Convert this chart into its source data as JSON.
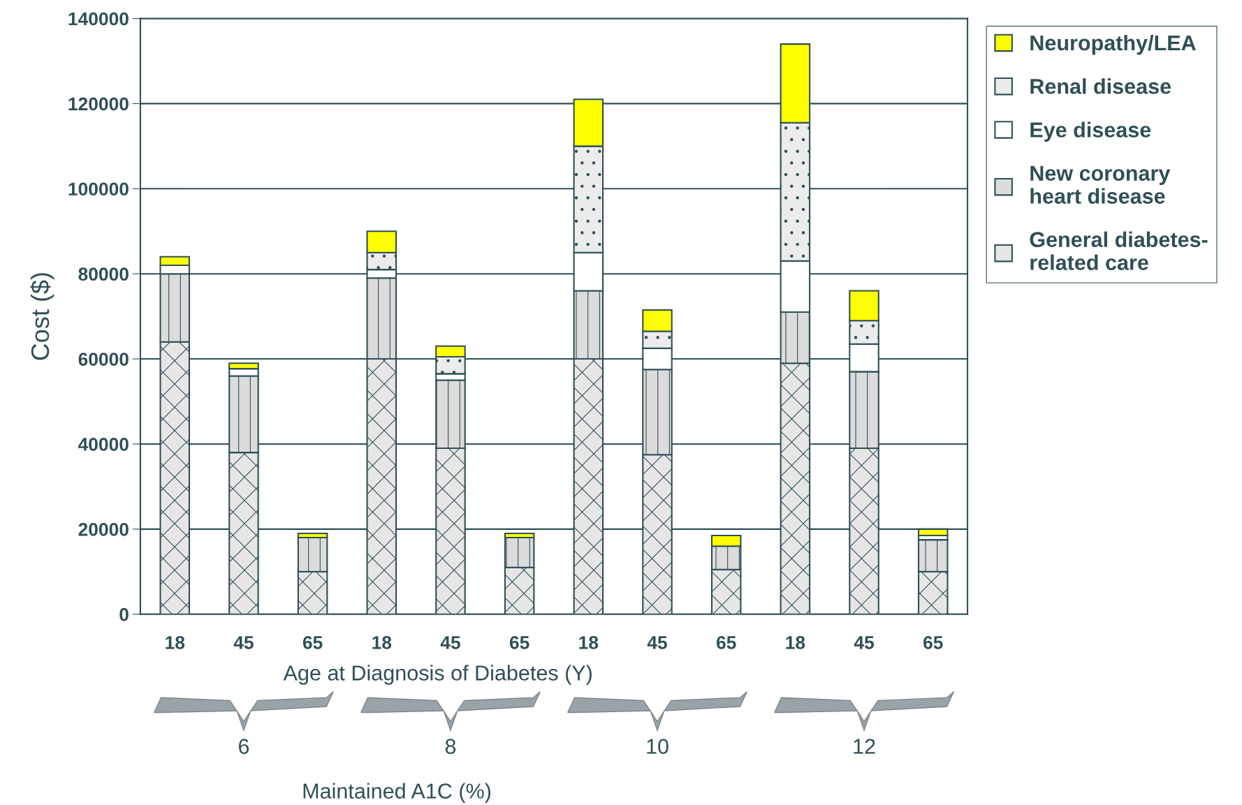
{
  "chart_data": {
    "type": "bar",
    "stacked": true,
    "ylabel": "Cost ($)",
    "xlabel": "Age at Diagnosis of Diabetes (Y)",
    "categories": [
      "18",
      "45",
      "65",
      "18",
      "45",
      "65",
      "18",
      "45",
      "65",
      "18",
      "45",
      "65"
    ],
    "series": [
      {
        "name": "General diabetes-related care",
        "color": "#e6e6e6",
        "values": [
          64000,
          38000,
          10000,
          60000,
          39000,
          11000,
          60000,
          37500,
          10500,
          59000,
          39000,
          10000
        ]
      },
      {
        "name": "New coronary heart disease",
        "color": "#dcdcdc",
        "values": [
          16000,
          18000,
          8000,
          19000,
          16000,
          7000,
          16000,
          20000,
          5500,
          12000,
          18000,
          7500
        ]
      },
      {
        "name": "Eye disease",
        "color": "#ffffff",
        "values": [
          2000,
          1700,
          null,
          2000,
          1500,
          null,
          9000,
          5000,
          null,
          12000,
          6500,
          1000
        ]
      },
      {
        "name": "Renal disease",
        "color": "#ececec",
        "values": [
          null,
          null,
          null,
          4000,
          4000,
          null,
          25000,
          4000,
          null,
          32500,
          5500,
          null
        ]
      },
      {
        "name": "Neuropathy/LEA",
        "color": "#ffff00",
        "values": [
          2000,
          1300,
          1000,
          5000,
          2500,
          1000,
          11000,
          5000,
          2500,
          18500,
          7000,
          1500
        ]
      }
    ],
    "ylim": [
      0,
      140000
    ],
    "yticks": [
      0,
      20000,
      40000,
      60000,
      80000,
      100000,
      120000,
      140000
    ],
    "grid": "y",
    "legend": "right",
    "annotations": [
      "6",
      "8",
      "10",
      "12",
      "Maintained A1C (%)"
    ]
  }
}
